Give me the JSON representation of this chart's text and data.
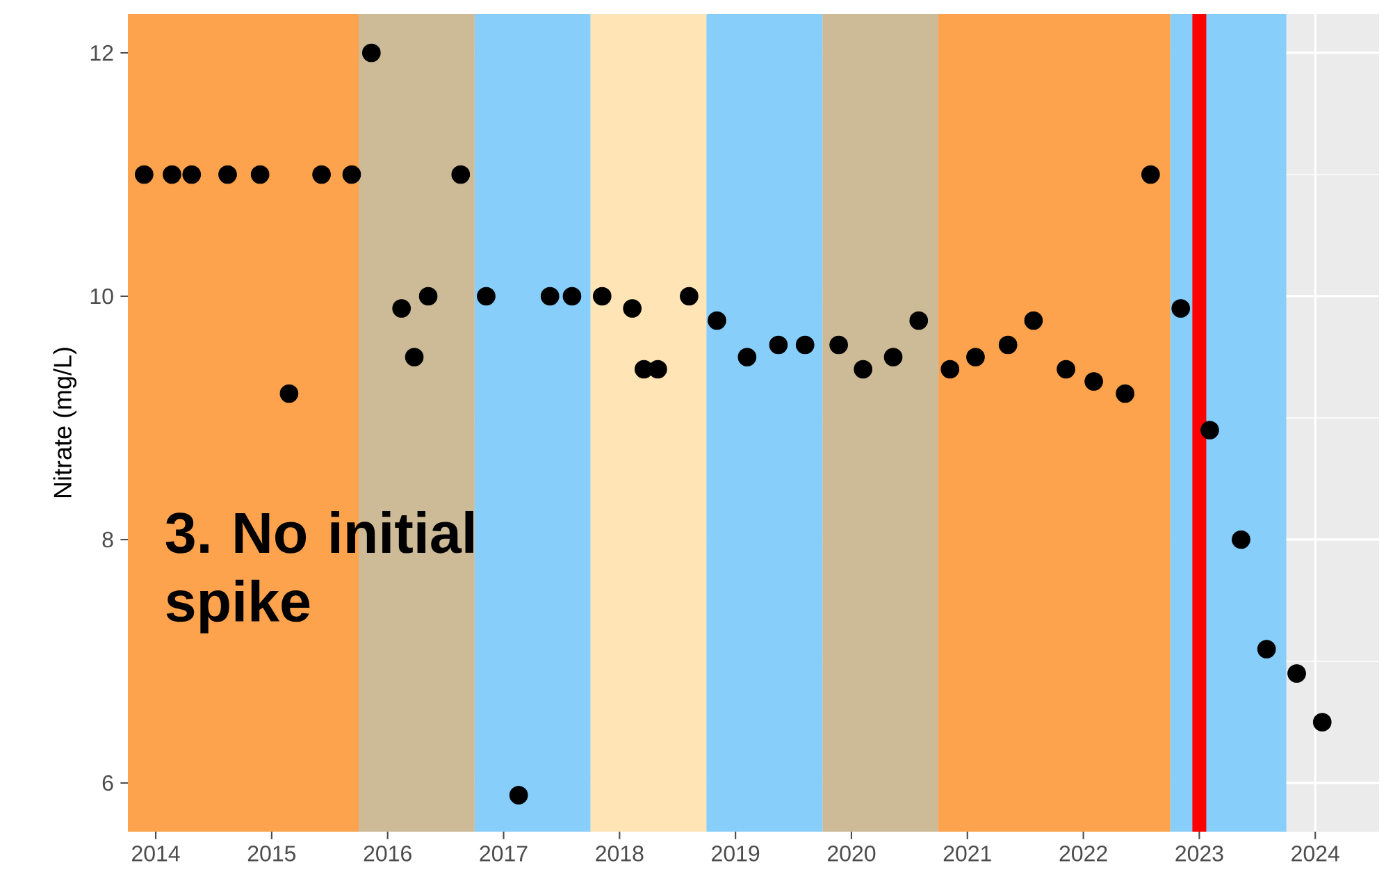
{
  "chart_data": {
    "type": "scatter",
    "ylabel": "Nitrate (mg/L)",
    "annotations": [
      "3. No initial spike"
    ],
    "x": [
      2013.9,
      2014.14,
      2014.31,
      2014.62,
      2014.9,
      2015.15,
      2015.43,
      2015.69,
      2015.86,
      2016.12,
      2016.23,
      2016.35,
      2016.63,
      2016.85,
      2017.13,
      2017.4,
      2017.59,
      2017.85,
      2018.11,
      2018.21,
      2018.33,
      2018.6,
      2018.84,
      2019.1,
      2019.37,
      2019.6,
      2019.89,
      2020.1,
      2020.36,
      2020.58,
      2020.85,
      2021.07,
      2021.35,
      2021.57,
      2021.85,
      2022.09,
      2022.36,
      2022.58,
      2022.84,
      2023.09,
      2023.36,
      2023.58,
      2023.84,
      2024.06
    ],
    "values": [
      11,
      11,
      11,
      11,
      11,
      9.2,
      11,
      11,
      12,
      9.9,
      9.5,
      10,
      11,
      10,
      5.9,
      10,
      10,
      10,
      9.9,
      9.4,
      9.4,
      10,
      9.8,
      9.5,
      9.6,
      9.6,
      9.6,
      9.4,
      9.5,
      9.8,
      9.4,
      9.5,
      9.6,
      9.8,
      9.4,
      9.3,
      9.2,
      11,
      9.9,
      8.9,
      8.0,
      7.1,
      6.9,
      6.5
    ],
    "color": "#000000",
    "marker": "circle",
    "xlim": [
      2013.76,
      2024.55
    ],
    "ylim": [
      5.6,
      12.32
    ],
    "xticks": [
      2014,
      2015,
      2016,
      2017,
      2018,
      2019,
      2020,
      2021,
      2022,
      2023,
      2024
    ],
    "yticks": [
      6,
      8,
      10,
      12
    ],
    "grid": true,
    "bands": [
      {
        "axis": "x",
        "from": 2013.76,
        "to": 2015.75,
        "color": "#fda24d"
      },
      {
        "axis": "x",
        "from": 2015.75,
        "to": 2016.75,
        "color": "#cdba96"
      },
      {
        "axis": "x",
        "from": 2016.75,
        "to": 2017.75,
        "color": "#87cefa"
      },
      {
        "axis": "x",
        "from": 2017.75,
        "to": 2018.75,
        "color": "#ffe4b5"
      },
      {
        "axis": "x",
        "from": 2018.75,
        "to": 2019.75,
        "color": "#87cefa"
      },
      {
        "axis": "x",
        "from": 2019.75,
        "to": 2020.75,
        "color": "#cdba96"
      },
      {
        "axis": "x",
        "from": 2020.75,
        "to": 2022.75,
        "color": "#fda24d"
      },
      {
        "axis": "x",
        "from": 2022.75,
        "to": 2023.75,
        "color": "#87cefa"
      }
    ],
    "ref_lines": [
      {
        "axis": "x",
        "value": 2023.0,
        "color": "#ff0000"
      }
    ]
  }
}
